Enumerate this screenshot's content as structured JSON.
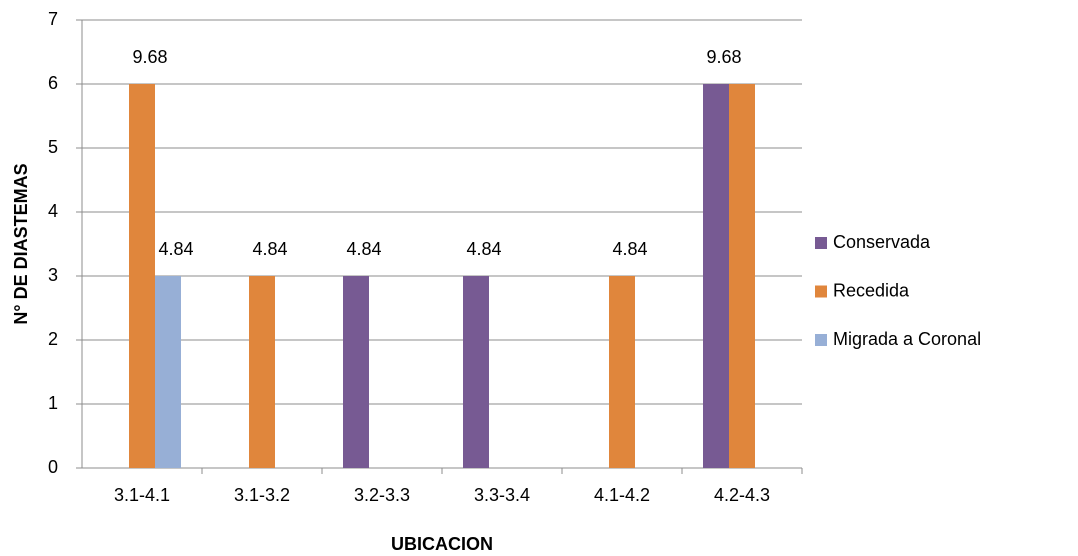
{
  "chart_data": {
    "type": "bar",
    "categories": [
      "3.1-4.1",
      "3.1-3.2",
      "3.2-3.3",
      "3.3-3.4",
      "4.1-4.2",
      "4.2-4.3"
    ],
    "series": [
      {
        "name": "Conservada",
        "color": "#775a93",
        "values": [
          null,
          null,
          3,
          3,
          null,
          6
        ],
        "data_labels": [
          null,
          null,
          "4.84",
          "4.84",
          null,
          "9.68"
        ]
      },
      {
        "name": "Recedida",
        "color": "#e0863c",
        "values": [
          6,
          3,
          null,
          null,
          3,
          6
        ],
        "data_labels": [
          "9.68",
          "4.84",
          null,
          null,
          "4.84",
          null
        ]
      },
      {
        "name": "Migrada a Coronal",
        "color": "#97afd6",
        "values": [
          3,
          null,
          null,
          null,
          null,
          null
        ],
        "data_labels": [
          "4.84",
          null,
          null,
          null,
          null,
          null
        ]
      }
    ],
    "x_label": "UBICACION",
    "y_label": "N° DE DIASTEMAS",
    "ylim": [
      0,
      7
    ],
    "yticks": [
      0,
      1,
      2,
      3,
      4,
      5,
      6,
      7
    ],
    "grid": true,
    "legend": "right"
  }
}
